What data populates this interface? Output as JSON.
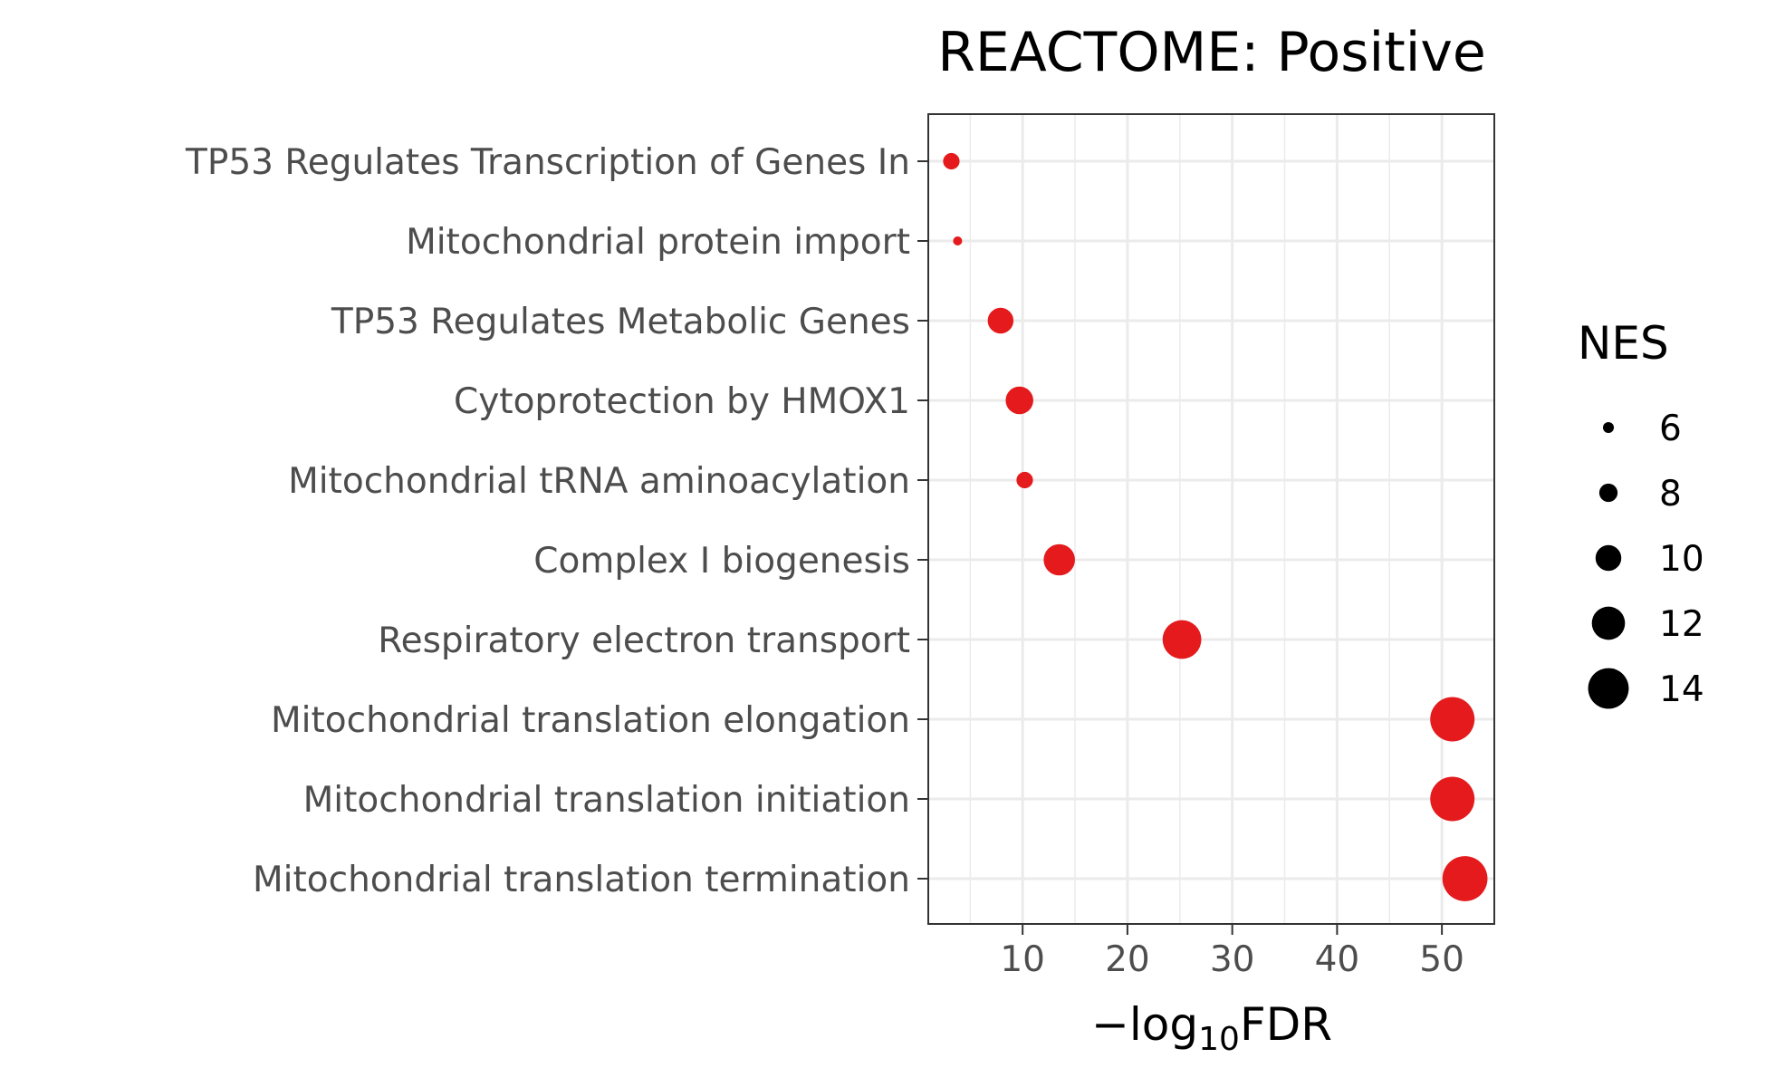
{
  "chart_data": {
    "type": "scatter",
    "title": "REACTOME: Positive",
    "xlabel": {
      "prefix": "−log",
      "subscript": "10",
      "suffix": "FDR"
    },
    "xlim": [
      1,
      55
    ],
    "x_ticks": [
      10,
      20,
      30,
      40,
      50
    ],
    "grid": true,
    "point_color": "#e41a1c",
    "categories": [
      "TP53 Regulates Transcription of Genes In",
      "Mitochondrial protein import",
      "TP53 Regulates Metabolic Genes",
      "Cytoprotection by HMOX1",
      "Mitochondrial tRNA aminoacylation",
      "Complex I biogenesis",
      "Respiratory electron transport",
      "Mitochondrial translation elongation",
      "Mitochondrial translation initiation",
      "Mitochondrial translation termination"
    ],
    "x": [
      3.2,
      3.8,
      7.9,
      9.7,
      10.2,
      13.5,
      25.2,
      51.0,
      51.0,
      52.2
    ],
    "size_values": [
      7.5,
      5.5,
      10.0,
      10.5,
      7.5,
      11.5,
      13.5,
      15.0,
      15.0,
      15.2
    ],
    "legend": {
      "title": "NES",
      "position": "right",
      "values": [
        "6",
        "8",
        "10",
        "12",
        "14"
      ]
    }
  }
}
